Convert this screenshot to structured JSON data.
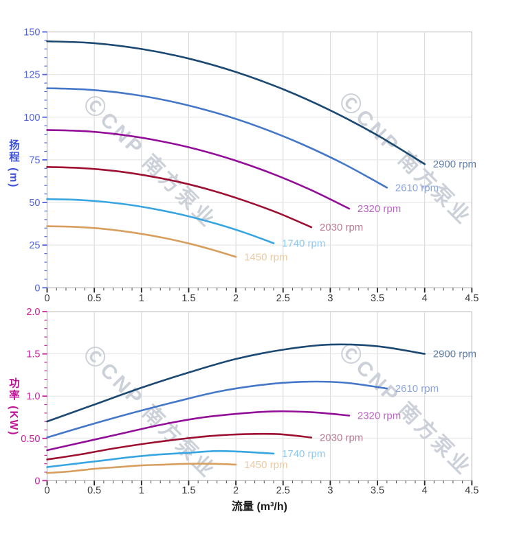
{
  "watermark": {
    "text": "ⒸCNP 南方泵业",
    "color": "#ccd0d8"
  },
  "chart_data": [
    {
      "type": "line",
      "title": "",
      "ylabel": "扬程 (m)",
      "xlabel": "流量 (m³/h)",
      "xlim": [
        0,
        4.5
      ],
      "ylim": [
        0,
        150
      ],
      "grid": true,
      "legend": "inline-end-of-line-labels",
      "axis_title_color": "#3b4fd8",
      "tick_label_color": "#5263e0",
      "x_tick_label_color": "#3a3a3a",
      "x_ticks": {
        "major_values": [
          0,
          0.5,
          1,
          1.5,
          2,
          2.5,
          3,
          3.5,
          4,
          4.5
        ],
        "major_labels": [
          "0",
          "0.5",
          "1",
          "1.5",
          "2",
          "2.5",
          "3",
          "3.5",
          "4",
          "4.5"
        ],
        "minor_step": 0.1
      },
      "y_ticks": {
        "major_values": [
          0,
          25,
          50,
          75,
          100,
          125,
          150
        ],
        "major_labels": [
          "0",
          "25",
          "50",
          "75",
          "100",
          "125",
          "150"
        ],
        "minor_step": 5
      },
      "series": [
        {
          "name": "2900 rpm",
          "color": "#1b4971",
          "label_color": "#5d7da8",
          "points": [
            [
              0,
              144.5
            ],
            [
              0.5,
              143.4
            ],
            [
              1,
              140.0
            ],
            [
              1.5,
              134.4
            ],
            [
              2,
              126.5
            ],
            [
              2.5,
              116.4
            ],
            [
              3,
              104.0
            ],
            [
              3.5,
              89.4
            ],
            [
              4,
              72.5
            ]
          ]
        },
        {
          "name": "2610 rpm",
          "color": "#4577c9",
          "label_color": "#8ba6dc",
          "points": [
            [
              0,
              117.0
            ],
            [
              0.45,
              116.1
            ],
            [
              0.9,
              113.4
            ],
            [
              1.35,
              108.8
            ],
            [
              1.8,
              102.4
            ],
            [
              2.25,
              94.2
            ],
            [
              2.7,
              84.2
            ],
            [
              3.15,
              72.4
            ],
            [
              3.6,
              58.7
            ]
          ]
        },
        {
          "name": "2320 rpm",
          "color": "#930e98",
          "label_color": "#bb64c4",
          "points": [
            [
              0,
              92.5
            ],
            [
              0.4,
              91.8
            ],
            [
              0.8,
              89.6
            ],
            [
              1.2,
              86.0
            ],
            [
              1.6,
              81.0
            ],
            [
              2,
              74.5
            ],
            [
              2.4,
              66.6
            ],
            [
              2.8,
              57.2
            ],
            [
              3.2,
              46.4
            ]
          ]
        },
        {
          "name": "2030 rpm",
          "color": "#9d1032",
          "label_color": "#b77c8e",
          "points": [
            [
              0,
              70.8
            ],
            [
              0.35,
              70.2
            ],
            [
              0.7,
              68.6
            ],
            [
              1.05,
              65.8
            ],
            [
              1.4,
              62.0
            ],
            [
              1.75,
              57.0
            ],
            [
              2.1,
              50.9
            ],
            [
              2.45,
              43.8
            ],
            [
              2.8,
              35.5
            ]
          ]
        },
        {
          "name": "1740 rpm",
          "color": "#37a5e2",
          "label_color": "#8fc8ec",
          "points": [
            [
              0,
              52.0
            ],
            [
              0.3,
              51.6
            ],
            [
              0.6,
              50.4
            ],
            [
              0.9,
              48.4
            ],
            [
              1.2,
              45.5
            ],
            [
              1.5,
              41.9
            ],
            [
              1.8,
              37.4
            ],
            [
              2.1,
              32.2
            ],
            [
              2.4,
              26.1
            ]
          ]
        },
        {
          "name": "1450 rpm",
          "color": "#d79e5e",
          "label_color": "#eccaa0",
          "points": [
            [
              0,
              36.1
            ],
            [
              0.25,
              35.8
            ],
            [
              0.5,
              35.0
            ],
            [
              0.75,
              33.6
            ],
            [
              1,
              31.6
            ],
            [
              1.25,
              29.1
            ],
            [
              1.5,
              26.0
            ],
            [
              1.75,
              22.3
            ],
            [
              2,
              18.1
            ]
          ]
        }
      ]
    },
    {
      "type": "line",
      "title": "",
      "ylabel": "功率 (KW)",
      "xlabel": "流量 (m³/h)",
      "xlim": [
        0,
        4.5
      ],
      "ylim": [
        0,
        2
      ],
      "grid": true,
      "legend": "inline-end-of-line-labels",
      "axis_title_color": "#c01095",
      "tick_label_color": "#c9219c",
      "x_tick_label_color": "#3a3a3a",
      "x_ticks": {
        "major_values": [
          0,
          0.5,
          1,
          1.5,
          2,
          2.5,
          3,
          3.5,
          4,
          4.5
        ],
        "major_labels": [
          "0",
          "0.5",
          "1",
          "1.5",
          "2",
          "2.5",
          "3",
          "3.5",
          "4",
          "4.5"
        ],
        "minor_step": 0.1
      },
      "y_ticks": {
        "major_values": [
          0,
          0.5,
          1,
          1.5,
          2
        ],
        "major_labels": [
          "0",
          "0.50",
          "1.0",
          "1.5",
          "2.0"
        ],
        "minor_step": 0.1
      },
      "series": [
        {
          "name": "2900 rpm",
          "color": "#1b4971",
          "label_color": "#5d7da8",
          "points": [
            [
              0,
              0.7
            ],
            [
              0.5,
              0.9
            ],
            [
              1,
              1.1
            ],
            [
              1.5,
              1.28
            ],
            [
              2,
              1.44
            ],
            [
              2.5,
              1.55
            ],
            [
              3,
              1.61
            ],
            [
              3.5,
              1.59
            ],
            [
              4,
              1.5
            ]
          ]
        },
        {
          "name": "2610 rpm",
          "color": "#4577c9",
          "label_color": "#8ba6dc",
          "points": [
            [
              0,
              0.51
            ],
            [
              0.45,
              0.66
            ],
            [
              0.9,
              0.8
            ],
            [
              1.35,
              0.93
            ],
            [
              1.8,
              1.05
            ],
            [
              2.25,
              1.13
            ],
            [
              2.7,
              1.17
            ],
            [
              3.15,
              1.16
            ],
            [
              3.6,
              1.09
            ]
          ]
        },
        {
          "name": "2320 rpm",
          "color": "#930e98",
          "label_color": "#bb64c4",
          "points": [
            [
              0,
              0.36
            ],
            [
              0.4,
              0.46
            ],
            [
              0.8,
              0.56
            ],
            [
              1.2,
              0.66
            ],
            [
              1.6,
              0.74
            ],
            [
              2,
              0.79
            ],
            [
              2.4,
              0.82
            ],
            [
              2.8,
              0.81
            ],
            [
              3.2,
              0.77
            ]
          ]
        },
        {
          "name": "2030 rpm",
          "color": "#9d1032",
          "label_color": "#b77c8e",
          "points": [
            [
              0,
              0.25
            ],
            [
              0.35,
              0.31
            ],
            [
              0.7,
              0.38
            ],
            [
              1.05,
              0.44
            ],
            [
              1.4,
              0.49
            ],
            [
              1.75,
              0.53
            ],
            [
              2.1,
              0.55
            ],
            [
              2.45,
              0.55
            ],
            [
              2.8,
              0.51
            ]
          ]
        },
        {
          "name": "1740 rpm",
          "color": "#37a5e2",
          "label_color": "#8fc8ec",
          "points": [
            [
              0,
              0.16
            ],
            [
              0.3,
              0.2
            ],
            [
              0.6,
              0.24
            ],
            [
              0.9,
              0.28
            ],
            [
              1.2,
              0.31
            ],
            [
              1.5,
              0.33
            ],
            [
              1.8,
              0.35
            ],
            [
              2.1,
              0.34
            ],
            [
              2.4,
              0.32
            ]
          ]
        },
        {
          "name": "1450 rpm",
          "color": "#d79e5e",
          "label_color": "#eccaa0",
          "points": [
            [
              0,
              0.09
            ],
            [
              0.25,
              0.11
            ],
            [
              0.5,
              0.14
            ],
            [
              0.75,
              0.16
            ],
            [
              1,
              0.18
            ],
            [
              1.25,
              0.19
            ],
            [
              1.5,
              0.2
            ],
            [
              1.75,
              0.2
            ],
            [
              2,
              0.19
            ]
          ]
        }
      ]
    }
  ]
}
